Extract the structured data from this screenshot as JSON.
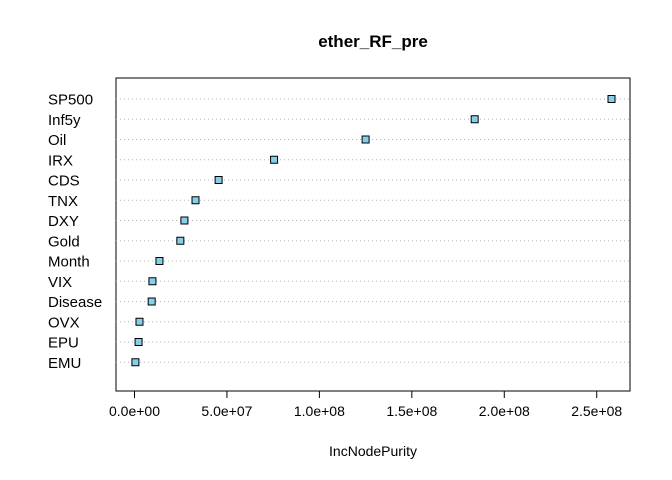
{
  "chart_data": {
    "type": "scatter",
    "title": "ether_RF_pre",
    "xlabel": "IncNodePurity",
    "ylabel": "",
    "categories": [
      "SP500",
      "Inf5y",
      "Oil",
      "IRX",
      "CDS",
      "TNX",
      "DXY",
      "Gold",
      "Month",
      "VIX",
      "Disease",
      "OVX",
      "EPU",
      "EMU"
    ],
    "values": [
      258000000,
      184000000,
      125000000,
      75500000,
      45500000,
      33000000,
      27000000,
      24800000,
      13500000,
      9700000,
      9300000,
      2700000,
      2200000,
      500000
    ],
    "xticks": [
      0,
      50000000,
      100000000,
      150000000,
      200000000,
      250000000
    ],
    "xtick_labels": [
      "0.0e+00",
      "5.0e+07",
      "1.0e+08",
      "1.5e+08",
      "2.0e+08",
      "2.5e+08"
    ],
    "xlim": [
      -10000000,
      268000000
    ],
    "point_color": "#87CEEB",
    "grid": "dotted horizontal"
  }
}
